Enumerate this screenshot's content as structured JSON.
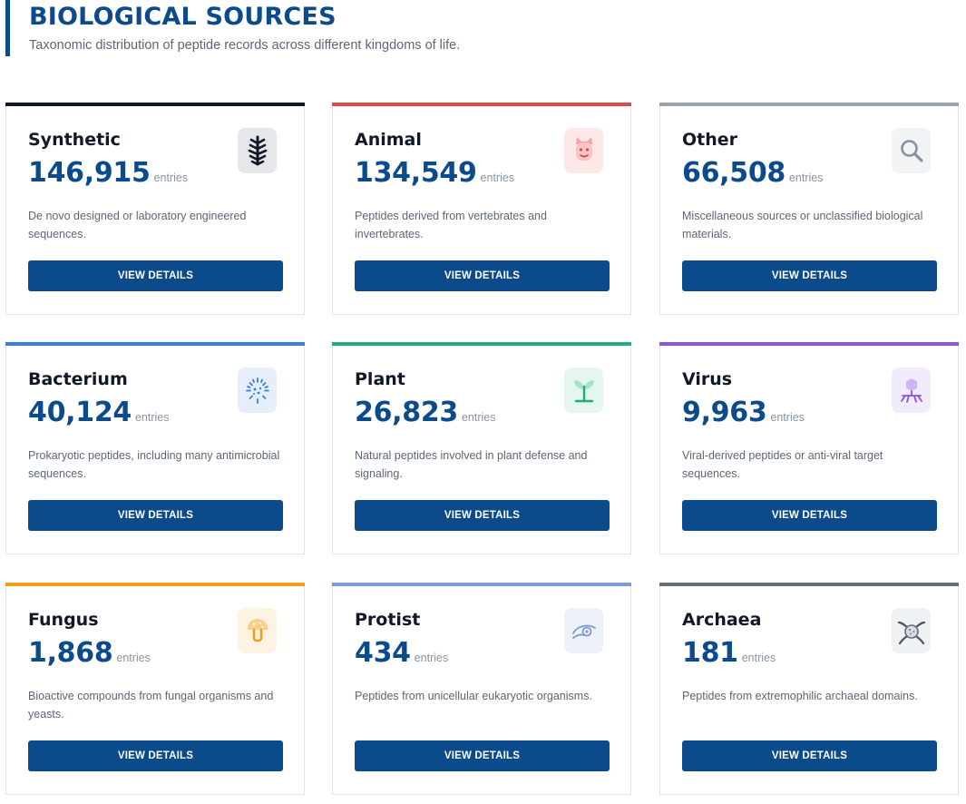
{
  "header": {
    "title": "BIOLOGICAL SOURCES",
    "subtitle": "Taxonomic distribution of peptide records across different kingdoms of life."
  },
  "cards": [
    {
      "name": "Synthetic",
      "count": "146,915",
      "unit": "entries",
      "description": "De novo designed or laboratory engineered sequences.",
      "button": "VIEW DETAILS",
      "accent": "#111827",
      "icon": "synthetic-icon",
      "icon_bg": "#e5e7eb"
    },
    {
      "name": "Animal",
      "count": "134,549",
      "unit": "entries",
      "description": "Peptides derived from vertebrates and invertebrates.",
      "button": "VIEW DETAILS",
      "accent": "#dc4a4a",
      "icon": "animal-face-icon",
      "icon_bg": "#fde8e8"
    },
    {
      "name": "Other",
      "count": "66,508",
      "unit": "entries",
      "description": "Miscellaneous sources or unclassified biological materials.",
      "button": "VIEW DETAILS",
      "accent": "#9aa3ad",
      "icon": "magnifier-icon",
      "icon_bg": "#f1f3f5"
    },
    {
      "name": "Bacterium",
      "count": "40,124",
      "unit": "entries",
      "description": "Prokaryotic peptides, including many antimicrobial sequences.",
      "button": "VIEW DETAILS",
      "accent": "#3b7fde",
      "icon": "bacterium-icon",
      "icon_bg": "#e6eefc"
    },
    {
      "name": "Plant",
      "count": "26,823",
      "unit": "entries",
      "description": "Natural peptides involved in plant defense and signaling.",
      "button": "VIEW DETAILS",
      "accent": "#1fae78",
      "icon": "plant-sprout-icon",
      "icon_bg": "#e4f6ee"
    },
    {
      "name": "Virus",
      "count": "9,963",
      "unit": "entries",
      "description": "Viral-derived peptides or anti-viral target sequences.",
      "button": "VIEW DETAILS",
      "accent": "#8b55e0",
      "icon": "virus-icon",
      "icon_bg": "#f1ebfc"
    },
    {
      "name": "Fungus",
      "count": "1,868",
      "unit": "entries",
      "description": "Bioactive compounds from fungal organisms and yeasts.",
      "button": "VIEW DETAILS",
      "accent": "#f29e1c",
      "icon": "mushroom-icon",
      "icon_bg": "#fdf3e3"
    },
    {
      "name": "Protist",
      "count": "434",
      "unit": "entries",
      "description": "Peptides from unicellular eukaryotic organisms.",
      "button": "VIEW DETAILS",
      "accent": "#7f9bd6",
      "icon": "protist-icon",
      "icon_bg": "#eef1f8"
    },
    {
      "name": "Archaea",
      "count": "181",
      "unit": "entries",
      "description": "Peptides from extremophilic archaeal domains.",
      "button": "VIEW DETAILS",
      "accent": "#646e7b",
      "icon": "archaea-icon",
      "icon_bg": "#f0f1f3"
    }
  ]
}
